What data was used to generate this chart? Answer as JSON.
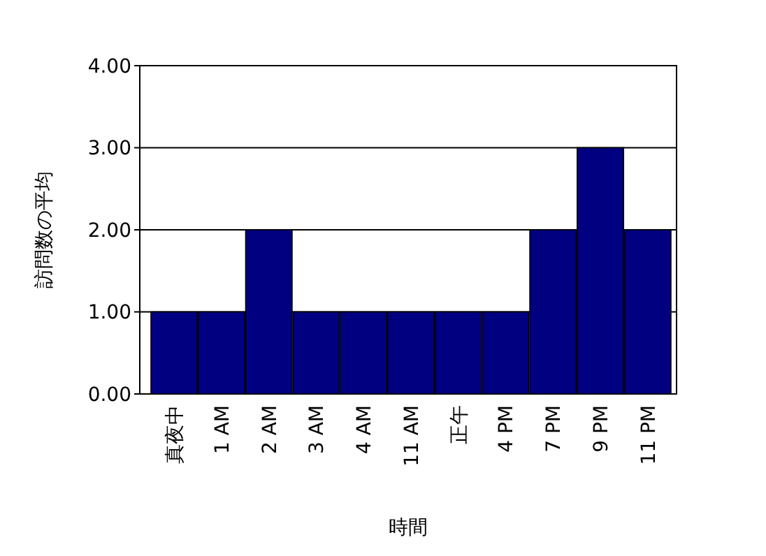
{
  "chart_data": {
    "type": "bar",
    "xlabel": "時間",
    "ylabel": "訪問数の平均",
    "categories": [
      "真夜中",
      "1 AM",
      "2 AM",
      "3 AM",
      "4 AM",
      "11 AM",
      "正午",
      "4 PM",
      "7 PM",
      "9 PM",
      "11 PM"
    ],
    "values": [
      1,
      1,
      2,
      1,
      1,
      1,
      1,
      1,
      2,
      3,
      2
    ],
    "color": "#000080",
    "ylim": [
      0,
      4
    ],
    "yticks": [
      {
        "value": 0,
        "label": "0.00"
      },
      {
        "value": 1,
        "label": "1.00"
      },
      {
        "value": 2,
        "label": "2.00"
      },
      {
        "value": 3,
        "label": "3.00"
      },
      {
        "value": 4,
        "label": "4.00"
      }
    ],
    "grid": "y"
  }
}
